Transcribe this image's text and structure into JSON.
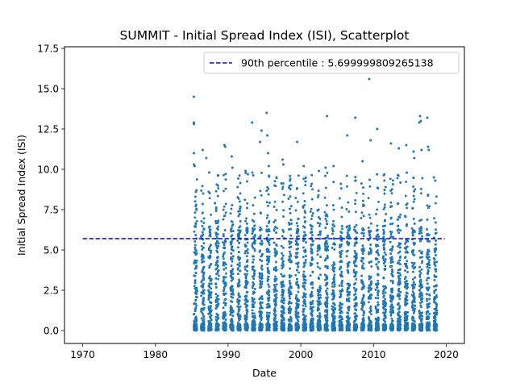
{
  "chart_data": {
    "type": "scatter",
    "title": "SUMMIT - Initial Spread Index (ISI), Scatterplot",
    "xlabel": "Date",
    "ylabel": "Initial Spread Index (ISI)",
    "xlim": [
      1967.5,
      2022.5
    ],
    "ylim": [
      -0.8,
      17.6
    ],
    "xticks": [
      1970,
      1980,
      1990,
      2000,
      2010,
      2020
    ],
    "xtick_labels": [
      "1970",
      "1980",
      "1990",
      "2000",
      "2010",
      "2020"
    ],
    "yticks": [
      0.0,
      2.5,
      5.0,
      7.5,
      10.0,
      12.5,
      15.0,
      17.5
    ],
    "ytick_labels": [
      "0.0",
      "2.5",
      "5.0",
      "7.5",
      "10.0",
      "12.5",
      "15.0",
      "17.5"
    ],
    "legend_position": "top-right",
    "grid": false,
    "series": [
      {
        "name": "",
        "color": "#1f77b4",
        "marker": "point",
        "points": [
          [
            1985.3,
            14.5
          ],
          [
            1985.3,
            12.9
          ],
          [
            1985.3,
            12.8
          ],
          [
            1985.3,
            11.0
          ],
          [
            1985.3,
            10.3
          ],
          [
            1985.4,
            10.2
          ],
          [
            1985.5,
            8.3
          ],
          [
            1985.6,
            7.8
          ],
          [
            1986.5,
            11.2
          ],
          [
            1987.0,
            10.7
          ],
          [
            1987.4,
            9.8
          ],
          [
            1988.2,
            7.9
          ],
          [
            1988.6,
            9.6
          ],
          [
            1989.5,
            11.5
          ],
          [
            1989.6,
            11.4
          ],
          [
            1990.5,
            10.8
          ],
          [
            1990.6,
            10.1
          ],
          [
            1991.6,
            8.0
          ],
          [
            1992.4,
            9.9
          ],
          [
            1993.3,
            12.9
          ],
          [
            1994.4,
            11.7
          ],
          [
            1994.6,
            12.4
          ],
          [
            1995.3,
            13.5
          ],
          [
            1995.4,
            12.1
          ],
          [
            1995.5,
            11.0
          ],
          [
            1995.6,
            10.2
          ],
          [
            1996.4,
            9.0
          ],
          [
            1997.5,
            10.6
          ],
          [
            1997.6,
            10.3
          ],
          [
            1998.5,
            9.3
          ],
          [
            1999.5,
            11.7
          ],
          [
            2000.4,
            10.2
          ],
          [
            2001.5,
            9.1
          ],
          [
            2002.5,
            9.9
          ],
          [
            2003.4,
            10.1
          ],
          [
            2003.6,
            13.3
          ],
          [
            2004.5,
            10.2
          ],
          [
            2005.5,
            9.1
          ],
          [
            2006.4,
            12.1
          ],
          [
            2007.5,
            13.2
          ],
          [
            2008.5,
            10.5
          ],
          [
            2009.4,
            15.6
          ],
          [
            2009.6,
            11.8
          ],
          [
            2010.5,
            12.5
          ],
          [
            2011.5,
            9.3
          ],
          [
            2012.4,
            11.6
          ],
          [
            2013.5,
            11.3
          ],
          [
            2014.5,
            11.5
          ],
          [
            2015.5,
            11.1
          ],
          [
            2015.6,
            10.7
          ],
          [
            2016.3,
            12.9
          ],
          [
            2016.4,
            13.3
          ],
          [
            2016.5,
            13.0
          ],
          [
            2016.6,
            11.2
          ],
          [
            2017.4,
            13.2
          ],
          [
            2017.5,
            11.4
          ],
          [
            2017.6,
            11.2
          ],
          [
            2018.3,
            9.5
          ],
          [
            2018.5,
            9.3
          ]
        ]
      }
    ],
    "reference_lines": [
      {
        "name": "90th percentile : 5.699999809265138",
        "value": 5.699999809265138,
        "x_range": [
          1970,
          2019.8
        ],
        "color": "#0000ff",
        "style": "dashed"
      }
    ]
  }
}
